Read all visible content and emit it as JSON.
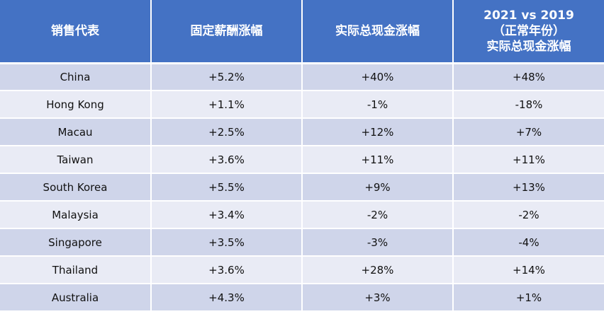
{
  "table": {
    "headers": {
      "col1": "销售代表",
      "col2": "固定薪酬涨幅",
      "col3": "实际总现金涨幅",
      "col4_line1": "2021 vs 2019",
      "col4_line2": "（正常年份）",
      "col4_line3": "实际总现金涨幅"
    },
    "rows": [
      {
        "region": "China",
        "fixed": "+5.2%",
        "actual": "+40%",
        "vs2019": "+48%"
      },
      {
        "region": "Hong Kong",
        "fixed": "+1.1%",
        "actual": "-1%",
        "vs2019": "-18%"
      },
      {
        "region": "Macau",
        "fixed": "+2.5%",
        "actual": "+12%",
        "vs2019": "+7%"
      },
      {
        "region": "Taiwan",
        "fixed": "+3.6%",
        "actual": "+11%",
        "vs2019": "+11%"
      },
      {
        "region": "South Korea",
        "fixed": "+5.5%",
        "actual": "+9%",
        "vs2019": "+13%"
      },
      {
        "region": "Malaysia",
        "fixed": "+3.4%",
        "actual": "-2%",
        "vs2019": "-2%"
      },
      {
        "region": "Singapore",
        "fixed": "+3.5%",
        "actual": "-3%",
        "vs2019": "-4%"
      },
      {
        "region": "Thailand",
        "fixed": "+3.6%",
        "actual": "+28%",
        "vs2019": "+14%"
      },
      {
        "region": "Australia",
        "fixed": "+4.3%",
        "actual": "+3%",
        "vs2019": "+1%"
      }
    ]
  },
  "colors": {
    "header_bg": "#4472C4",
    "row_dark": "#CFD5EA",
    "row_light": "#E9EBF5"
  }
}
